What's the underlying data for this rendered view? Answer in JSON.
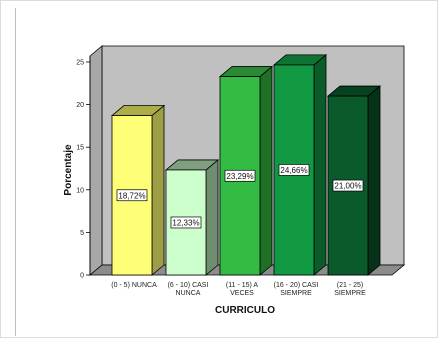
{
  "chart_data": {
    "type": "bar",
    "title": "",
    "xlabel": "CURRICULO",
    "ylabel": "Porcentaje",
    "ylim": [
      0,
      25
    ],
    "yticks": [
      0,
      5,
      10,
      15,
      20,
      25
    ],
    "grid": false,
    "categories": [
      [
        "(0 - 5) NUNCA"
      ],
      [
        "(6 - 10)  CASI",
        "NUNCA"
      ],
      [
        "(11 - 15)  A",
        "VECES"
      ],
      [
        "(16 - 20)  CASI",
        "SIEMPRE"
      ],
      [
        "(21 - 25)",
        "SIEMPRE"
      ]
    ],
    "values": [
      18.72,
      12.33,
      23.29,
      24.66,
      21.0
    ],
    "value_labels": [
      "18,72%",
      "12,33%",
      "23,29%",
      "24,66%",
      "21,00%"
    ],
    "colors": [
      {
        "front": "#ffff77",
        "side": "#9e9e46",
        "top": "#adad48"
      },
      {
        "front": "#ccffcc",
        "side": "#6f8e6f",
        "top": "#7f9f7f"
      },
      {
        "front": "#33bb44",
        "side": "#1f6f26",
        "top": "#2a8a33"
      },
      {
        "front": "#119944",
        "side": "#0a5c28",
        "top": "#0d7434"
      },
      {
        "front": "#0b5a2c",
        "side": "#053218",
        "top": "#074220"
      }
    ],
    "backdrop_color": "#c0c0c0"
  }
}
